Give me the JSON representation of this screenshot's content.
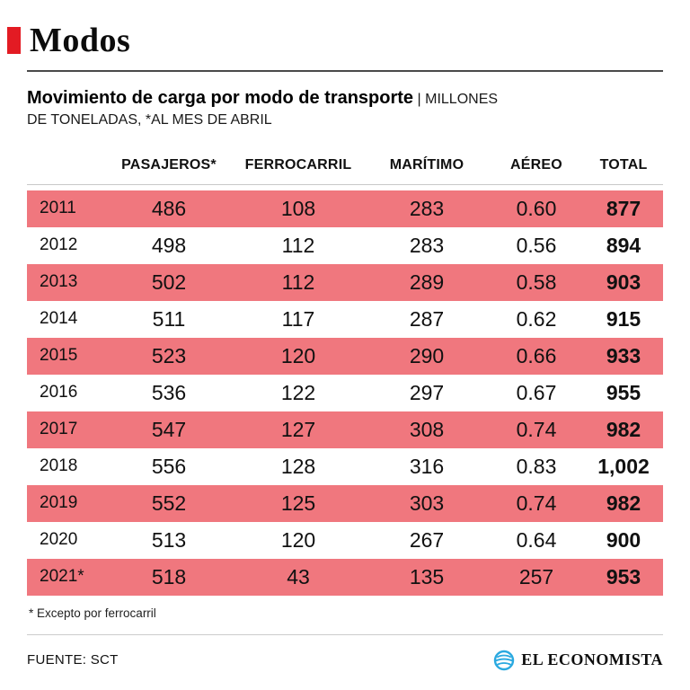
{
  "header": {
    "title": "Modos"
  },
  "subtitle": {
    "bold": "Movimiento de carga por modo de transporte",
    "rest_first_line": "| MILLONES",
    "rest_second_line": "DE TONELADAS, *AL MES DE ABRIL"
  },
  "chart_data": {
    "type": "table",
    "title": "Movimiento de carga por modo de transporte",
    "units": "Millones de toneladas, *al mes de abril",
    "columns": [
      "PASAJEROS*",
      "FERROCARRIL",
      "MARÍTIMO",
      "AÉREO",
      "TOTAL"
    ],
    "rows": [
      {
        "year": "2011",
        "values": [
          "486",
          "108",
          "283",
          "0.60",
          "877"
        ],
        "highlight": true
      },
      {
        "year": "2012",
        "values": [
          "498",
          "112",
          "283",
          "0.56",
          "894"
        ],
        "highlight": false
      },
      {
        "year": "2013",
        "values": [
          "502",
          "112",
          "289",
          "0.58",
          "903"
        ],
        "highlight": true
      },
      {
        "year": "2014",
        "values": [
          "511",
          "117",
          "287",
          "0.62",
          "915"
        ],
        "highlight": false
      },
      {
        "year": "2015",
        "values": [
          "523",
          "120",
          "290",
          "0.66",
          "933"
        ],
        "highlight": true
      },
      {
        "year": "2016",
        "values": [
          "536",
          "122",
          "297",
          "0.67",
          "955"
        ],
        "highlight": false
      },
      {
        "year": "2017",
        "values": [
          "547",
          "127",
          "308",
          "0.74",
          "982"
        ],
        "highlight": true
      },
      {
        "year": "2018",
        "values": [
          "556",
          "128",
          "316",
          "0.83",
          "1,002"
        ],
        "highlight": false
      },
      {
        "year": "2019",
        "values": [
          "552",
          "125",
          "303",
          "0.74",
          "982"
        ],
        "highlight": true
      },
      {
        "year": "2020",
        "values": [
          "513",
          "120",
          "267",
          "0.64",
          "900"
        ],
        "highlight": false
      },
      {
        "year": "2021*",
        "values": [
          "518",
          "43",
          "135",
          "257",
          "953"
        ],
        "highlight": true
      }
    ]
  },
  "footnote": {
    "text": "* Excepto por ferrocarril"
  },
  "footer": {
    "source": "FUENTE: SCT",
    "brand": "EL ECONOMISTA"
  },
  "colors": {
    "accent_red": "#e31b23",
    "row_highlight_pink": "#f0777e",
    "brand_mark_blue": "#2aa9e0"
  }
}
